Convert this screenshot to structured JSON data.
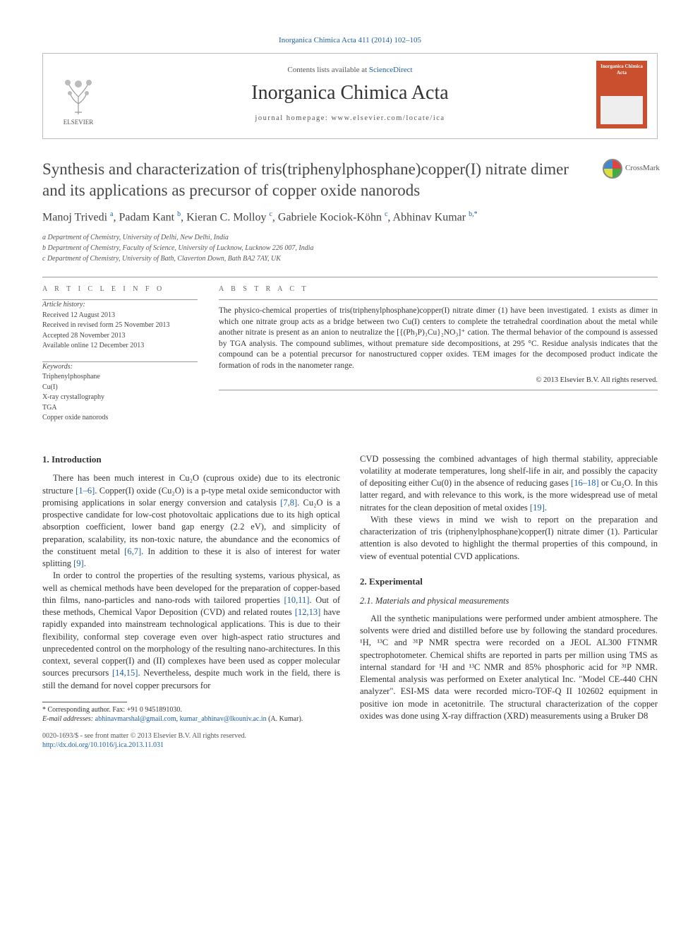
{
  "top_citation": "Inorganica Chimica Acta 411 (2014) 102–105",
  "header": {
    "contents_prefix": "Contents lists available at ",
    "contents_link": "ScienceDirect",
    "journal_name": "Inorganica Chimica Acta",
    "homepage_prefix": "journal homepage: ",
    "homepage_url": "www.elsevier.com/locate/ica",
    "publisher_name": "ELSEVIER",
    "cover_title": "Inorganica Chimica Acta"
  },
  "article": {
    "title": "Synthesis and characterization of tris(triphenylphosphane)copper(I) nitrate dimer and its applications as precursor of copper oxide nanorods",
    "crossmark_label": "CrossMark",
    "authors_html": "Manoj Trivedi <sup>a</sup>, Padam Kant <sup>b</sup>, Kieran C. Molloy <sup>c</sup>, Gabriele Kociok-Köhn <sup>c</sup>, Abhinav Kumar <sup>b,*</sup>",
    "affiliations": [
      "a Department of Chemistry, University of Delhi, New Delhi, India",
      "b Department of Chemistry, Faculty of Science, University of Lucknow, Lucknow 226 007, India",
      "c Department of Chemistry, University of Bath, Claverton Down, Bath BA2 7AY, UK"
    ]
  },
  "info": {
    "label": "A R T I C L E   I N F O",
    "history_head": "Article history:",
    "history": [
      "Received 12 August 2013",
      "Received in revised form 25 November 2013",
      "Accepted 28 November 2013",
      "Available online 12 December 2013"
    ],
    "keywords_head": "Keywords:",
    "keywords": [
      "Triphenylphosphane",
      "Cu(I)",
      "X-ray crystallography",
      "TGA",
      "Copper oxide nanorods"
    ]
  },
  "abstract": {
    "label": "A B S T R A C T",
    "text": "The physico-chemical properties of tris(triphenylphosphane)copper(I) nitrate dimer (1) have been investigated. 1 exists as dimer in which one nitrate group acts as a bridge between two Cu(I) centers to complete the tetrahedral coordination about the metal while another nitrate is present as an anion to neutralize the [{(Ph₃P)₃Cu}₂NO₃]⁺ cation. The thermal behavior of the compound is assessed by TGA analysis. The compound sublimes, without premature side decompositions, at 295 °C. Residue analysis indicates that the compound can be a potential precursor for nanostructured copper oxides. TEM images for the decomposed product indicate the formation of rods in the nanometer range.",
    "copyright": "© 2013 Elsevier B.V. All rights reserved."
  },
  "sections": {
    "intro_head": "1. Introduction",
    "intro_p1_a": "There has been much interest in Cu₂O (cuprous oxide) due to its electronic structure ",
    "intro_p1_ref1": "[1–6]",
    "intro_p1_b": ". Copper(I) oxide (Cu₂O) is a p-type metal oxide semiconductor with promising applications in solar energy conversion and catalysis ",
    "intro_p1_ref2": "[7,8]",
    "intro_p1_c": ". Cu₂O is a prospective candidate for low-cost photovoltaic applications due to its high optical absorption coefficient, lower band gap energy (2.2 eV), and simplicity of preparation, scalability, its non-toxic nature, the abundance and the economics of the constituent metal ",
    "intro_p1_ref3": "[6,7]",
    "intro_p1_d": ". In addition to these it is also of interest for water splitting ",
    "intro_p1_ref4": "[9]",
    "intro_p1_e": ".",
    "intro_p2_a": "In order to control the properties of the resulting systems, various physical, as well as chemical methods have been developed for the preparation of copper-based thin films, nano-particles and nano-rods with tailored properties ",
    "intro_p2_ref1": "[10,11]",
    "intro_p2_b": ". Out of these methods, Chemical Vapor Deposition (CVD) and related routes ",
    "intro_p2_ref2": "[12,13]",
    "intro_p2_c": " have rapidly expanded into mainstream technological applications. This is due to their flexibility, conformal step coverage even over high-aspect ratio structures and unprecedented control on the morphology of the resulting nano-architectures. In this context, several copper(I) and (II) complexes have been used as copper molecular sources precursors ",
    "intro_p2_ref3": "[14,15]",
    "intro_p2_d": ". Nevertheless, despite much work in the field, there is still the demand for novel copper precursors for ",
    "intro_p3_a": "CVD possessing the combined advantages of high thermal stability, appreciable volatility at moderate temperatures, long shelf-life in air, and possibly the capacity of depositing either Cu(0) in the absence of reducing gases ",
    "intro_p3_ref1": "[16–18]",
    "intro_p3_b": " or Cu₂O. In this latter regard, and with relevance to this work, is the more widespread use of metal nitrates for the clean deposition of metal oxides ",
    "intro_p3_ref2": "[19]",
    "intro_p3_c": ".",
    "intro_p4": "With these views in mind we wish to report on the preparation and characterization of tris (triphenylphosphane)copper(I) nitrate dimer (1). Particular attention is also devoted to highlight the thermal properties of this compound, in view of eventual potential CVD applications.",
    "exp_head": "2. Experimental",
    "exp_sub1": "2.1. Materials and physical measurements",
    "exp_p1": "All the synthetic manipulations were performed under ambient atmosphere. The solvents were dried and distilled before use by following the standard procedures. ¹H, ¹³C and ³¹P NMR spectra were recorded on a JEOL AL300 FTNMR spectrophotometer. Chemical shifts are reported in parts per million using TMS as internal standard for ¹H and ¹³C NMR and 85% phosphoric acid for ³¹P NMR. Elemental analysis was performed on Exeter analytical Inc. \"Model CE-440 CHN analyzer\". ESI-MS data were recorded micro-TOF-Q II 102602 equipment in positive ion mode in acetonitrile. The structural characterization of the copper oxides was done using X-ray diffraction (XRD) measurements using a Bruker D8"
  },
  "footnotes": {
    "corr": "* Corresponding author. Fax: +91 0 9451891030.",
    "email_label": "E-mail addresses:",
    "email1": "abhinavmarshal@gmail.com",
    "email2": "kumar_abhinav@lkouniv.ac.in",
    "email_tail": "(A. Kumar)."
  },
  "bottom": {
    "issn_line": "0020-1693/$ - see front matter © 2013 Elsevier B.V. All rights reserved.",
    "doi": "http://dx.doi.org/10.1016/j.ica.2013.11.031"
  },
  "colors": {
    "link": "#2060a0",
    "journal_cover": "#c94f2f"
  }
}
